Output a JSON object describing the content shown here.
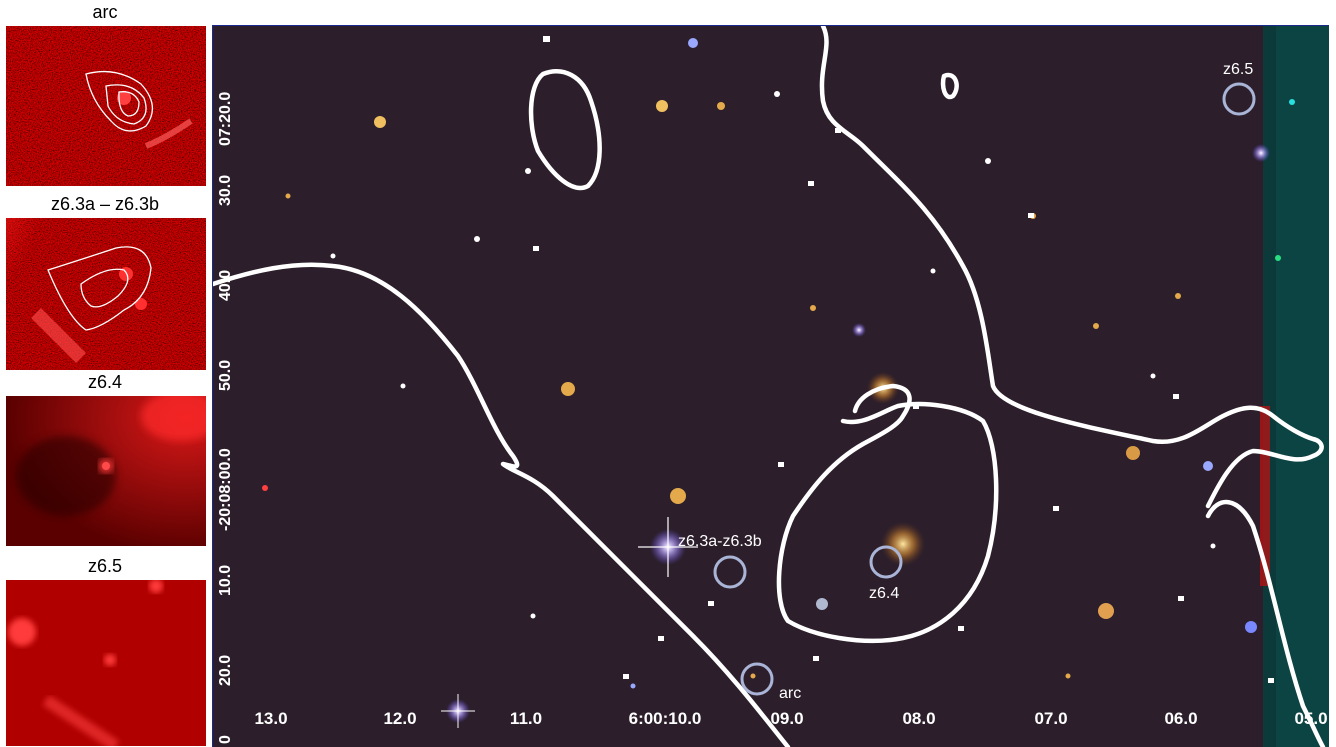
{
  "panels": [
    {
      "label": "arc"
    },
    {
      "label": "z6.3a – z6.3b"
    },
    {
      "label": "z6.4"
    },
    {
      "label": "z6.5"
    }
  ],
  "main": {
    "ra_ticks": [
      "13.0",
      "12.0",
      "11.0",
      "6:00:10.0",
      "09.0",
      "08.0",
      "07.0",
      "06.0",
      "05.0"
    ],
    "dec_ticks": [
      "07:20.0",
      "30.0",
      "40.0",
      "50.0",
      "-20:08:00.0",
      "10.0",
      "20.0",
      "0"
    ],
    "source_labels": {
      "z6_5": "z6.5",
      "z6_3": "z6.3a-z6.3b",
      "z6_4": "z6.4",
      "arc": "arc"
    },
    "colors": {
      "background": "#2c1f2b",
      "critical_curve": "#ffffff",
      "source_circle": "#a9b4d6",
      "panel_red": "#c81010"
    }
  }
}
